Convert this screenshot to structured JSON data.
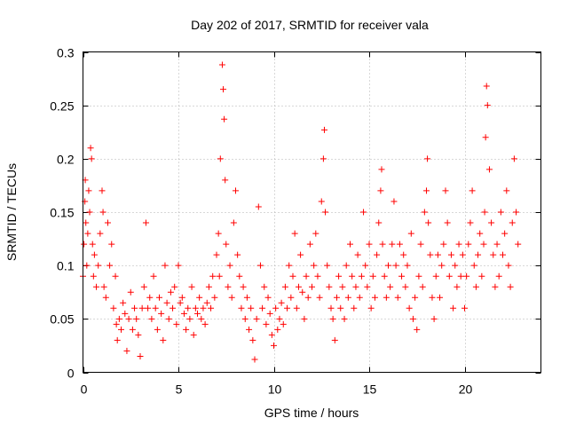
{
  "chart_data": {
    "type": "scatter",
    "title": "Day 202 of 2017, SRMTID for receiver vala",
    "xlabel": "GPS time / hours",
    "ylabel": "SRMTID / TECUs",
    "xlim": [
      0,
      24.0
    ],
    "ylim": [
      0,
      0.3
    ],
    "xticks": [
      0,
      5,
      10,
      15,
      20
    ],
    "xtick_labels": [
      "0",
      "5",
      "10",
      "15",
      "20"
    ],
    "yticks": [
      0,
      0.05,
      0.1,
      0.15,
      0.2,
      0.25,
      0.3
    ],
    "ytick_labels": [
      "0",
      "0.05",
      "0.1",
      "0.15",
      "0.2",
      "0.25",
      "0.3"
    ],
    "grid": true,
    "marker": "plus",
    "color": "#ff0000",
    "series": [
      {
        "name": "SRMTID",
        "points": [
          [
            0.0,
            0.09
          ],
          [
            0.05,
            0.12
          ],
          [
            0.1,
            0.16
          ],
          [
            0.12,
            0.18
          ],
          [
            0.15,
            0.14
          ],
          [
            0.2,
            0.1
          ],
          [
            0.25,
            0.13
          ],
          [
            0.3,
            0.17
          ],
          [
            0.35,
            0.15
          ],
          [
            0.4,
            0.21
          ],
          [
            0.45,
            0.2
          ],
          [
            0.5,
            0.12
          ],
          [
            0.55,
            0.09
          ],
          [
            0.6,
            0.11
          ],
          [
            0.7,
            0.08
          ],
          [
            0.8,
            0.1
          ],
          [
            0.9,
            0.13
          ],
          [
            1.0,
            0.17
          ],
          [
            1.05,
            0.15
          ],
          [
            1.1,
            0.08
          ],
          [
            1.2,
            0.07
          ],
          [
            1.3,
            0.14
          ],
          [
            1.4,
            0.1
          ],
          [
            1.5,
            0.12
          ],
          [
            1.6,
            0.06
          ],
          [
            1.7,
            0.09
          ],
          [
            1.75,
            0.045
          ],
          [
            1.8,
            0.03
          ],
          [
            1.9,
            0.05
          ],
          [
            2.0,
            0.04
          ],
          [
            2.1,
            0.065
          ],
          [
            2.2,
            0.055
          ],
          [
            2.3,
            0.02
          ],
          [
            2.4,
            0.05
          ],
          [
            2.5,
            0.075
          ],
          [
            2.6,
            0.04
          ],
          [
            2.7,
            0.06
          ],
          [
            2.8,
            0.05
          ],
          [
            2.9,
            0.035
          ],
          [
            3.0,
            0.015
          ],
          [
            3.1,
            0.06
          ],
          [
            3.2,
            0.08
          ],
          [
            3.3,
            0.14
          ],
          [
            3.4,
            0.06
          ],
          [
            3.5,
            0.07
          ],
          [
            3.6,
            0.05
          ],
          [
            3.7,
            0.09
          ],
          [
            3.8,
            0.06
          ],
          [
            3.9,
            0.04
          ],
          [
            4.0,
            0.07
          ],
          [
            4.1,
            0.055
          ],
          [
            4.2,
            0.03
          ],
          [
            4.3,
            0.1
          ],
          [
            4.4,
            0.065
          ],
          [
            4.5,
            0.05
          ],
          [
            4.6,
            0.075
          ],
          [
            4.7,
            0.06
          ],
          [
            4.8,
            0.08
          ],
          [
            4.9,
            0.045
          ],
          [
            5.0,
            0.1
          ],
          [
            5.1,
            0.065
          ],
          [
            5.2,
            0.07
          ],
          [
            5.3,
            0.055
          ],
          [
            5.4,
            0.04
          ],
          [
            5.5,
            0.06
          ],
          [
            5.6,
            0.05
          ],
          [
            5.7,
            0.08
          ],
          [
            5.8,
            0.035
          ],
          [
            5.9,
            0.06
          ],
          [
            6.0,
            0.055
          ],
          [
            6.1,
            0.07
          ],
          [
            6.2,
            0.05
          ],
          [
            6.3,
            0.06
          ],
          [
            6.4,
            0.045
          ],
          [
            6.5,
            0.065
          ],
          [
            6.6,
            0.08
          ],
          [
            6.7,
            0.06
          ],
          [
            6.8,
            0.09
          ],
          [
            6.9,
            0.07
          ],
          [
            7.0,
            0.11
          ],
          [
            7.1,
            0.13
          ],
          [
            7.15,
            0.09
          ],
          [
            7.2,
            0.2
          ],
          [
            7.3,
            0.288
          ],
          [
            7.35,
            0.265
          ],
          [
            7.4,
            0.237
          ],
          [
            7.45,
            0.18
          ],
          [
            7.5,
            0.12
          ],
          [
            7.6,
            0.08
          ],
          [
            7.7,
            0.1
          ],
          [
            7.8,
            0.07
          ],
          [
            7.9,
            0.14
          ],
          [
            8.0,
            0.17
          ],
          [
            8.1,
            0.11
          ],
          [
            8.2,
            0.09
          ],
          [
            8.3,
            0.06
          ],
          [
            8.4,
            0.08
          ],
          [
            8.5,
            0.05
          ],
          [
            8.6,
            0.07
          ],
          [
            8.7,
            0.04
          ],
          [
            8.8,
            0.06
          ],
          [
            8.9,
            0.03
          ],
          [
            9.0,
            0.012
          ],
          [
            9.1,
            0.05
          ],
          [
            9.2,
            0.155
          ],
          [
            9.3,
            0.1
          ],
          [
            9.4,
            0.06
          ],
          [
            9.5,
            0.08
          ],
          [
            9.6,
            0.045
          ],
          [
            9.7,
            0.07
          ],
          [
            9.8,
            0.055
          ],
          [
            9.9,
            0.035
          ],
          [
            10.0,
            0.025
          ],
          [
            10.1,
            0.06
          ],
          [
            10.2,
            0.04
          ],
          [
            10.3,
            0.05
          ],
          [
            10.4,
            0.065
          ],
          [
            10.5,
            0.045
          ],
          [
            10.6,
            0.08
          ],
          [
            10.7,
            0.06
          ],
          [
            10.8,
            0.1
          ],
          [
            10.9,
            0.07
          ],
          [
            11.0,
            0.09
          ],
          [
            11.1,
            0.13
          ],
          [
            11.2,
            0.06
          ],
          [
            11.3,
            0.08
          ],
          [
            11.4,
            0.11
          ],
          [
            11.5,
            0.075
          ],
          [
            11.6,
            0.05
          ],
          [
            11.7,
            0.09
          ],
          [
            11.8,
            0.07
          ],
          [
            11.9,
            0.12
          ],
          [
            12.0,
            0.08
          ],
          [
            12.1,
            0.1
          ],
          [
            12.2,
            0.13
          ],
          [
            12.3,
            0.09
          ],
          [
            12.4,
            0.07
          ],
          [
            12.5,
            0.16
          ],
          [
            12.6,
            0.2
          ],
          [
            12.65,
            0.227
          ],
          [
            12.7,
            0.15
          ],
          [
            12.8,
            0.1
          ],
          [
            12.9,
            0.08
          ],
          [
            13.0,
            0.06
          ],
          [
            13.1,
            0.05
          ],
          [
            13.2,
            0.03
          ],
          [
            13.3,
            0.07
          ],
          [
            13.4,
            0.09
          ],
          [
            13.5,
            0.06
          ],
          [
            13.6,
            0.08
          ],
          [
            13.7,
            0.05
          ],
          [
            13.8,
            0.1
          ],
          [
            13.9,
            0.07
          ],
          [
            14.0,
            0.12
          ],
          [
            14.1,
            0.09
          ],
          [
            14.2,
            0.06
          ],
          [
            14.3,
            0.08
          ],
          [
            14.4,
            0.11
          ],
          [
            14.5,
            0.07
          ],
          [
            14.6,
            0.09
          ],
          [
            14.7,
            0.15
          ],
          [
            14.8,
            0.1
          ],
          [
            14.9,
            0.08
          ],
          [
            15.0,
            0.12
          ],
          [
            15.1,
            0.06
          ],
          [
            15.2,
            0.09
          ],
          [
            15.3,
            0.07
          ],
          [
            15.4,
            0.11
          ],
          [
            15.5,
            0.14
          ],
          [
            15.6,
            0.17
          ],
          [
            15.65,
            0.19
          ],
          [
            15.7,
            0.12
          ],
          [
            15.8,
            0.09
          ],
          [
            15.9,
            0.07
          ],
          [
            16.0,
            0.1
          ],
          [
            16.1,
            0.08
          ],
          [
            16.2,
            0.12
          ],
          [
            16.3,
            0.16
          ],
          [
            16.4,
            0.1
          ],
          [
            16.5,
            0.07
          ],
          [
            16.6,
            0.12
          ],
          [
            16.7,
            0.09
          ],
          [
            16.8,
            0.11
          ],
          [
            16.9,
            0.08
          ],
          [
            17.0,
            0.1
          ],
          [
            17.1,
            0.06
          ],
          [
            17.2,
            0.13
          ],
          [
            17.3,
            0.05
          ],
          [
            17.4,
            0.07
          ],
          [
            17.5,
            0.04
          ],
          [
            17.6,
            0.09
          ],
          [
            17.7,
            0.12
          ],
          [
            17.8,
            0.08
          ],
          [
            17.9,
            0.15
          ],
          [
            18.0,
            0.17
          ],
          [
            18.05,
            0.2
          ],
          [
            18.1,
            0.14
          ],
          [
            18.2,
            0.11
          ],
          [
            18.3,
            0.07
          ],
          [
            18.4,
            0.05
          ],
          [
            18.5,
            0.09
          ],
          [
            18.6,
            0.11
          ],
          [
            18.7,
            0.07
          ],
          [
            18.8,
            0.1
          ],
          [
            18.9,
            0.12
          ],
          [
            19.0,
            0.17
          ],
          [
            19.1,
            0.14
          ],
          [
            19.2,
            0.09
          ],
          [
            19.3,
            0.11
          ],
          [
            19.4,
            0.06
          ],
          [
            19.5,
            0.1
          ],
          [
            19.6,
            0.08
          ],
          [
            19.7,
            0.12
          ],
          [
            19.8,
            0.09
          ],
          [
            19.9,
            0.11
          ],
          [
            20.0,
            0.06
          ],
          [
            20.1,
            0.09
          ],
          [
            20.2,
            0.12
          ],
          [
            20.3,
            0.14
          ],
          [
            20.4,
            0.17
          ],
          [
            20.5,
            0.1
          ],
          [
            20.6,
            0.08
          ],
          [
            20.7,
            0.11
          ],
          [
            20.8,
            0.13
          ],
          [
            20.9,
            0.09
          ],
          [
            21.0,
            0.12
          ],
          [
            21.05,
            0.15
          ],
          [
            21.1,
            0.22
          ],
          [
            21.15,
            0.268
          ],
          [
            21.2,
            0.25
          ],
          [
            21.3,
            0.19
          ],
          [
            21.4,
            0.14
          ],
          [
            21.5,
            0.11
          ],
          [
            21.6,
            0.08
          ],
          [
            21.7,
            0.12
          ],
          [
            21.8,
            0.09
          ],
          [
            21.9,
            0.15
          ],
          [
            22.0,
            0.11
          ],
          [
            22.1,
            0.13
          ],
          [
            22.2,
            0.17
          ],
          [
            22.3,
            0.1
          ],
          [
            22.4,
            0.08
          ],
          [
            22.5,
            0.14
          ],
          [
            22.6,
            0.2
          ],
          [
            22.7,
            0.15
          ],
          [
            22.8,
            0.12
          ]
        ]
      }
    ]
  }
}
